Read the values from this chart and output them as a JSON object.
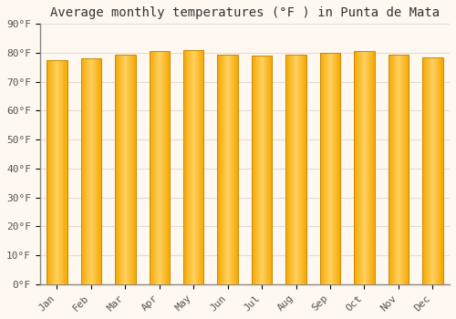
{
  "title": "Average monthly temperatures (°F ) in Punta de Mata",
  "months": [
    "Jan",
    "Feb",
    "Mar",
    "Apr",
    "May",
    "Jun",
    "Jul",
    "Aug",
    "Sep",
    "Oct",
    "Nov",
    "Dec"
  ],
  "values": [
    77.5,
    78.0,
    79.5,
    80.5,
    81.0,
    79.5,
    79.0,
    79.5,
    80.0,
    80.5,
    79.5,
    78.5
  ],
  "bar_color_center": "#FFD060",
  "bar_color_edge": "#F5A800",
  "bar_edge_color": "#CC8800",
  "ylim": [
    0,
    90
  ],
  "yticks": [
    0,
    10,
    20,
    30,
    40,
    50,
    60,
    70,
    80,
    90
  ],
  "ytick_labels": [
    "0°F",
    "10°F",
    "20°F",
    "30°F",
    "40°F",
    "50°F",
    "60°F",
    "70°F",
    "80°F",
    "90°F"
  ],
  "background_color": "#FFF8F0",
  "plot_bg_color": "#FFF8F0",
  "grid_color": "#DDDDDD",
  "title_fontsize": 10,
  "tick_fontsize": 8,
  "font_family": "monospace",
  "bar_width": 0.6,
  "n_gradient_bars": 50
}
